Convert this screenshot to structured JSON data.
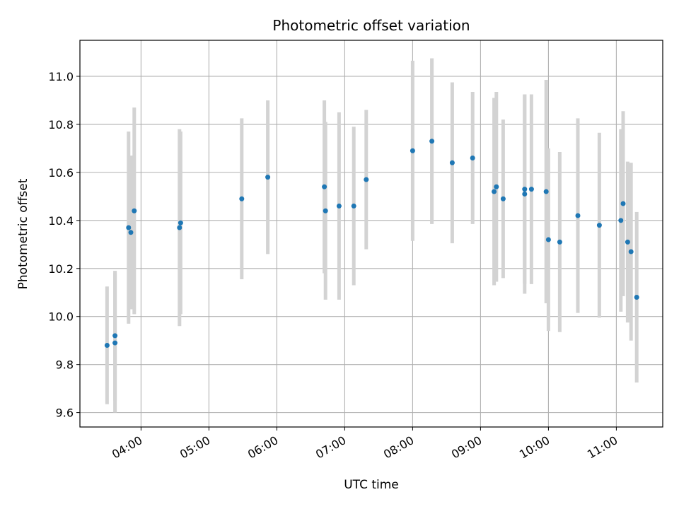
{
  "chart_data": {
    "type": "scatter",
    "title": "Photometric offset variation",
    "xlabel": "UTC time",
    "ylabel": "Photometric offset",
    "x_ticks": [
      "04:00",
      "05:00",
      "06:00",
      "07:00",
      "08:00",
      "09:00",
      "10:00",
      "11:00"
    ],
    "y_ticks": [
      "9.6",
      "9.8",
      "10.0",
      "10.2",
      "10.4",
      "10.6",
      "10.8",
      "11.0"
    ],
    "xlim": [
      "03:06",
      "11:41"
    ],
    "ylim": [
      9.54,
      11.15
    ],
    "grid": true,
    "colors": {
      "point": "#1f77b4",
      "errorbar": "#d3d3d3",
      "grid": "#b0b0b0"
    },
    "points": [
      {
        "x": "03:30",
        "y": 9.88,
        "yerr": 0.245
      },
      {
        "x": "03:37",
        "y": 9.92,
        "yerr": 0.27
      },
      {
        "x": "03:37",
        "y": 9.89,
        "yerr": 0.29
      },
      {
        "x": "03:49",
        "y": 10.37,
        "yerr": 0.4
      },
      {
        "x": "03:51",
        "y": 10.35,
        "yerr": 0.32
      },
      {
        "x": "03:54",
        "y": 10.44,
        "yerr": 0.43
      },
      {
        "x": "04:34",
        "y": 10.37,
        "yerr": 0.41
      },
      {
        "x": "04:35",
        "y": 10.39,
        "yerr": 0.38
      },
      {
        "x": "05:29",
        "y": 10.49,
        "yerr": 0.335
      },
      {
        "x": "05:52",
        "y": 10.58,
        "yerr": 0.32
      },
      {
        "x": "06:42",
        "y": 10.54,
        "yerr": 0.36
      },
      {
        "x": "06:43",
        "y": 10.44,
        "yerr": 0.37
      },
      {
        "x": "06:55",
        "y": 10.46,
        "yerr": 0.39
      },
      {
        "x": "07:08",
        "y": 10.46,
        "yerr": 0.33
      },
      {
        "x": "07:19",
        "y": 10.57,
        "yerr": 0.29
      },
      {
        "x": "08:00",
        "y": 10.69,
        "yerr": 0.375
      },
      {
        "x": "08:17",
        "y": 10.73,
        "yerr": 0.345
      },
      {
        "x": "08:35",
        "y": 10.64,
        "yerr": 0.335
      },
      {
        "x": "08:53",
        "y": 10.66,
        "yerr": 0.275
      },
      {
        "x": "09:12",
        "y": 10.52,
        "yerr": 0.39
      },
      {
        "x": "09:14",
        "y": 10.54,
        "yerr": 0.395
      },
      {
        "x": "09:20",
        "y": 10.49,
        "yerr": 0.33
      },
      {
        "x": "09:39",
        "y": 10.53,
        "yerr": 0.395
      },
      {
        "x": "09:39",
        "y": 10.51,
        "yerr": 0.415
      },
      {
        "x": "09:45",
        "y": 10.53,
        "yerr": 0.395
      },
      {
        "x": "09:58",
        "y": 10.52,
        "yerr": 0.465
      },
      {
        "x": "10:00",
        "y": 10.32,
        "yerr": 0.38
      },
      {
        "x": "10:10",
        "y": 10.31,
        "yerr": 0.375
      },
      {
        "x": "10:26",
        "y": 10.42,
        "yerr": 0.405
      },
      {
        "x": "10:45",
        "y": 10.38,
        "yerr": 0.385
      },
      {
        "x": "11:04",
        "y": 10.4,
        "yerr": 0.38
      },
      {
        "x": "11:06",
        "y": 10.47,
        "yerr": 0.385
      },
      {
        "x": "11:10",
        "y": 10.31,
        "yerr": 0.335
      },
      {
        "x": "11:13",
        "y": 10.27,
        "yerr": 0.37
      },
      {
        "x": "11:18",
        "y": 10.08,
        "yerr": 0.355
      }
    ]
  }
}
